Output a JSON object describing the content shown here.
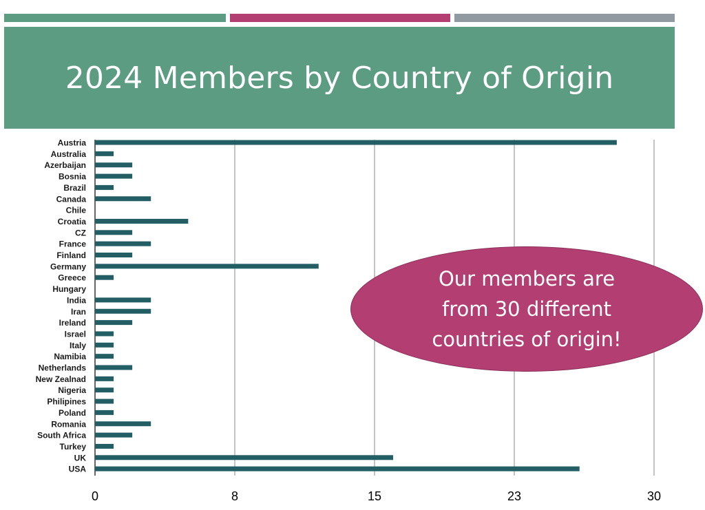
{
  "slide": {
    "title": "2024 Members by Country of Origin",
    "callout": "Our members are from 30 different countries of origin!",
    "stripe_colors": [
      "#5b9c83",
      "#b23e72",
      "#9199a1"
    ],
    "accent_color": "#5b9c83",
    "callout_color": "#b23e72"
  },
  "chart_data": {
    "type": "bar",
    "orientation": "horizontal",
    "title": "",
    "xlabel": "",
    "ylabel": "",
    "categories": [
      "Austria",
      "Australia",
      "Azerbaijan",
      "Bosnia",
      "Brazil",
      "Canada",
      "Chile",
      "Croatia",
      "CZ",
      "France",
      "Finland",
      "Germany",
      "Greece",
      "Hungary",
      "India",
      "Iran",
      "Ireland",
      "Israel",
      "Italy",
      "Namibia",
      "Netherlands",
      "New Zealnad",
      "Nigeria",
      "Philipines",
      "Poland",
      "Romania",
      "South Africa",
      "Turkey",
      "UK",
      "USA"
    ],
    "values": [
      28,
      1,
      2,
      2,
      1,
      3,
      0,
      5,
      2,
      3,
      2,
      12,
      1,
      0,
      3,
      3,
      2,
      1,
      1,
      1,
      2,
      1,
      1,
      1,
      1,
      3,
      2,
      1,
      16,
      26
    ],
    "xlim": [
      0,
      30
    ],
    "xticks": [
      "0",
      "8",
      "15",
      "23",
      "30"
    ],
    "bar_color": "#225e63",
    "grid": true,
    "legend": "none"
  }
}
